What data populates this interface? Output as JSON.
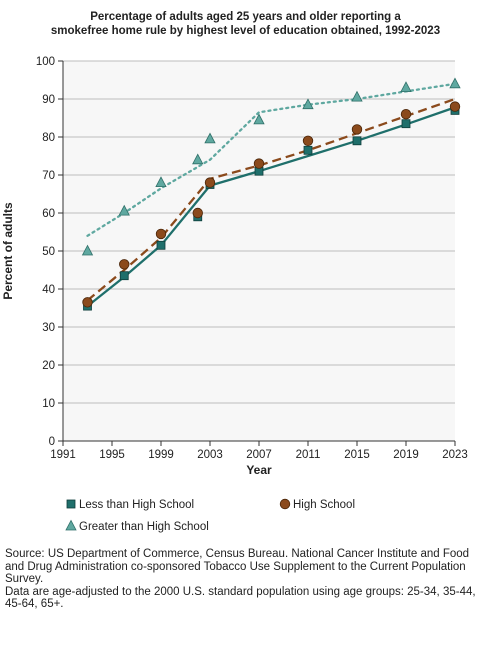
{
  "title_lines": [
    "Percentage of adults aged 25 years and older reporting a",
    "smokefree home rule by highest level of education obtained, 1992-2023"
  ],
  "chart_data": {
    "type": "line",
    "title": "Percentage of adults aged 25 years and older reporting a smokefree home rule by highest level of education obtained, 1992-2023",
    "xlabel": "Year",
    "ylabel": "Percent of adults",
    "xlim": [
      1991,
      2023
    ],
    "ylim": [
      0,
      100
    ],
    "x_ticks": [
      1991,
      1995,
      1999,
      2003,
      2007,
      2011,
      2015,
      2019,
      2023
    ],
    "y_ticks": [
      0,
      10,
      20,
      30,
      40,
      50,
      60,
      70,
      80,
      90,
      100
    ],
    "grid": "horizontal",
    "legend_position": "bottom",
    "series": [
      {
        "name": "Less than High School",
        "marker": "square",
        "line_style": "solid",
        "color": "#1f6f6b",
        "points": [
          [
            1993,
            35.5
          ],
          [
            1996,
            43.5
          ],
          [
            1999,
            51.5
          ],
          [
            2002,
            59.0
          ],
          [
            2003,
            67.5
          ],
          [
            2007,
            71.0
          ],
          [
            2011,
            76.5
          ],
          [
            2015,
            79.0
          ],
          [
            2019,
            83.5
          ],
          [
            2023,
            87.0
          ]
        ],
        "trend": [
          [
            1993,
            35.5
          ],
          [
            1996,
            43.2
          ],
          [
            1999,
            51.5
          ],
          [
            2003,
            67.2
          ],
          [
            2007,
            71.0
          ],
          [
            2011,
            75.0
          ],
          [
            2015,
            79.0
          ],
          [
            2019,
            83.3
          ],
          [
            2023,
            87.8
          ]
        ]
      },
      {
        "name": "High School",
        "marker": "circle",
        "line_style": "dashed",
        "color": "#8b4a1c",
        "points": [
          [
            1993,
            36.5
          ],
          [
            1996,
            46.5
          ],
          [
            1999,
            54.5
          ],
          [
            2002,
            60.0
          ],
          [
            2003,
            68.0
          ],
          [
            2007,
            73.0
          ],
          [
            2011,
            79.0
          ],
          [
            2015,
            82.0
          ],
          [
            2019,
            86.0
          ],
          [
            2023,
            88.0
          ]
        ],
        "trend": [
          [
            1993,
            37.0
          ],
          [
            1996,
            45.0
          ],
          [
            1999,
            53.5
          ],
          [
            2003,
            69.0
          ],
          [
            2007,
            72.5
          ],
          [
            2011,
            76.5
          ],
          [
            2015,
            81.0
          ],
          [
            2019,
            85.5
          ],
          [
            2023,
            90.0
          ]
        ]
      },
      {
        "name": "Greater than High School",
        "marker": "triangle",
        "line_style": "dotted",
        "color": "#5fa8a0",
        "points": [
          [
            1993,
            50.0
          ],
          [
            1996,
            60.5
          ],
          [
            1999,
            68.0
          ],
          [
            2002,
            74.0
          ],
          [
            2003,
            79.5
          ],
          [
            2007,
            84.5
          ],
          [
            2011,
            88.5
          ],
          [
            2015,
            90.5
          ],
          [
            2019,
            93.0
          ],
          [
            2023,
            94.0
          ]
        ],
        "trend": [
          [
            1993,
            54.0
          ],
          [
            1996,
            60.0
          ],
          [
            1999,
            66.5
          ],
          [
            2003,
            74.0
          ],
          [
            2007,
            86.5
          ],
          [
            2011,
            88.5
          ],
          [
            2015,
            90.0
          ],
          [
            2019,
            92.0
          ],
          [
            2023,
            94.0
          ]
        ]
      }
    ]
  },
  "footer": {
    "source": "Source: US Department of Commerce, Census Bureau. National Cancer Institute and Food and Drug Administration co-sponsored Tobacco Use Supplement to the Current Population Survey.",
    "note": "Data are age-adjusted to the 2000 U.S. standard population using age groups: 25-34, 35-44, 45-64, 65+."
  }
}
